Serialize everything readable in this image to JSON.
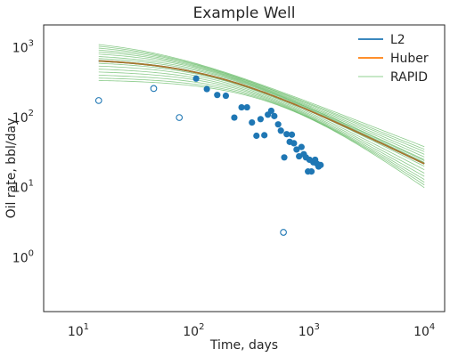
{
  "chart_data": {
    "type": "scatter",
    "title": "Example Well",
    "xlabel": "Time, days",
    "ylabel": "Oil rate, bbl/day",
    "xscale": "log",
    "yscale": "log",
    "xlim": [
      5,
      15000
    ],
    "ylim": [
      0.17,
      2100
    ],
    "grid": false,
    "legend_position": "top-right",
    "x_ticks": [
      {
        "value": 10,
        "base": "10",
        "exp": "1"
      },
      {
        "value": 100,
        "base": "10",
        "exp": "2"
      },
      {
        "value": 1000,
        "base": "10",
        "exp": "3"
      },
      {
        "value": 10000,
        "base": "10",
        "exp": "4"
      }
    ],
    "y_ticks": [
      {
        "value": 1,
        "base": "10",
        "exp": "0"
      },
      {
        "value": 10,
        "base": "10",
        "exp": "1"
      },
      {
        "value": 100,
        "base": "10",
        "exp": "2"
      },
      {
        "value": 1000,
        "base": "10",
        "exp": "3"
      }
    ],
    "colors": {
      "l2": "#1f77b4",
      "huber": "#ff7f0e",
      "rapid": "#2ca02c",
      "points": "#1f77b4"
    },
    "legend": [
      {
        "label": "L2",
        "key": "l2"
      },
      {
        "label": "Huber",
        "key": "huber"
      },
      {
        "label": "RAPID",
        "key": "rapid"
      }
    ],
    "model": {
      "t_start": 15,
      "t_end": 10000,
      "l2": {
        "qi": 700,
        "b": 1.25,
        "di": 0.006
      },
      "huber": {
        "qi": 700,
        "b": 1.25,
        "di": 0.006
      },
      "rapid_ensemble": [
        {
          "qi": 1350,
          "b": 1.55,
          "di": 0.016
        },
        {
          "qi": 1250,
          "b": 1.5,
          "di": 0.014
        },
        {
          "qi": 1150,
          "b": 1.45,
          "di": 0.012
        },
        {
          "qi": 1060,
          "b": 1.4,
          "di": 0.0105
        },
        {
          "qi": 980,
          "b": 1.35,
          "di": 0.0092
        },
        {
          "qi": 900,
          "b": 1.3,
          "di": 0.008
        },
        {
          "qi": 820,
          "b": 1.28,
          "di": 0.007
        },
        {
          "qi": 760,
          "b": 1.25,
          "di": 0.0063
        },
        {
          "qi": 700,
          "b": 1.2,
          "di": 0.0058
        },
        {
          "qi": 640,
          "b": 1.15,
          "di": 0.0052
        },
        {
          "qi": 580,
          "b": 1.1,
          "di": 0.0046
        },
        {
          "qi": 520,
          "b": 1.05,
          "di": 0.004
        },
        {
          "qi": 470,
          "b": 1.0,
          "di": 0.0035
        },
        {
          "qi": 420,
          "b": 0.95,
          "di": 0.003
        },
        {
          "qi": 380,
          "b": 0.9,
          "di": 0.0026
        },
        {
          "qi": 350,
          "b": 0.85,
          "di": 0.0023
        }
      ]
    },
    "points_included": [
      {
        "x": 105,
        "y": 360
      },
      {
        "x": 130,
        "y": 255
      },
      {
        "x": 160,
        "y": 210
      },
      {
        "x": 190,
        "y": 205
      },
      {
        "x": 225,
        "y": 100
      },
      {
        "x": 260,
        "y": 140
      },
      {
        "x": 290,
        "y": 140
      },
      {
        "x": 320,
        "y": 85
      },
      {
        "x": 350,
        "y": 55
      },
      {
        "x": 380,
        "y": 95
      },
      {
        "x": 410,
        "y": 56
      },
      {
        "x": 440,
        "y": 110
      },
      {
        "x": 470,
        "y": 125
      },
      {
        "x": 500,
        "y": 105
      },
      {
        "x": 540,
        "y": 80
      },
      {
        "x": 570,
        "y": 65
      },
      {
        "x": 610,
        "y": 27
      },
      {
        "x": 640,
        "y": 58
      },
      {
        "x": 680,
        "y": 45
      },
      {
        "x": 710,
        "y": 57
      },
      {
        "x": 740,
        "y": 43
      },
      {
        "x": 780,
        "y": 35
      },
      {
        "x": 820,
        "y": 28
      },
      {
        "x": 860,
        "y": 38
      },
      {
        "x": 900,
        "y": 30
      },
      {
        "x": 940,
        "y": 27
      },
      {
        "x": 980,
        "y": 17
      },
      {
        "x": 1010,
        "y": 25
      },
      {
        "x": 1050,
        "y": 17
      },
      {
        "x": 1090,
        "y": 23
      },
      {
        "x": 1130,
        "y": 25
      },
      {
        "x": 1170,
        "y": 22
      },
      {
        "x": 1210,
        "y": 20
      },
      {
        "x": 1260,
        "y": 21
      }
    ],
    "points_excluded": [
      {
        "x": 15,
        "y": 175
      },
      {
        "x": 45,
        "y": 260
      },
      {
        "x": 75,
        "y": 100
      },
      {
        "x": 600,
        "y": 2.3
      }
    ]
  }
}
